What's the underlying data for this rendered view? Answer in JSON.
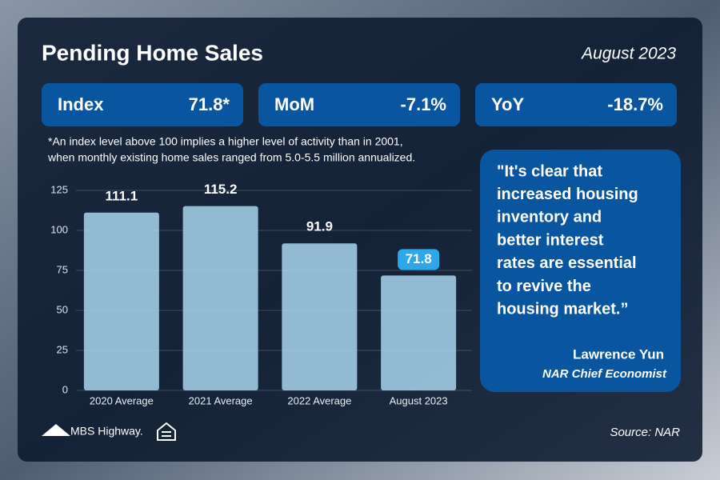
{
  "title": "Pending Home Sales",
  "date": "August 2023",
  "stats": [
    {
      "label": "Index",
      "value": "71.8*"
    },
    {
      "label": "MoM",
      "value": "-7.1%"
    },
    {
      "label": "YoY",
      "value": "-18.7%"
    }
  ],
  "footnote": [
    "*An index level above 100 implies a higher level of activity than in 2001,",
    "when monthly existing home sales ranged from 5.0-5.5 million annualized."
  ],
  "chart_data": {
    "type": "bar",
    "categories": [
      "2020 Average",
      "2021 Average",
      "2022 Average",
      "August 2023"
    ],
    "values": [
      111.1,
      115.2,
      91.9,
      71.8
    ],
    "color": "#a9d5ef",
    "ylim": [
      0,
      125
    ],
    "yticks": [
      0,
      25,
      50,
      75,
      100,
      125
    ],
    "grid": true
  },
  "quote": {
    "lines": [
      "\"It's clear that",
      "increased housing",
      "inventory and",
      "better interest",
      "rates are essential",
      "to revive the",
      "housing market.”"
    ],
    "author": "Lawrence Yun",
    "role": "NAR Chief Economist"
  },
  "source": "Source: NAR",
  "brand": "MBS Highway."
}
